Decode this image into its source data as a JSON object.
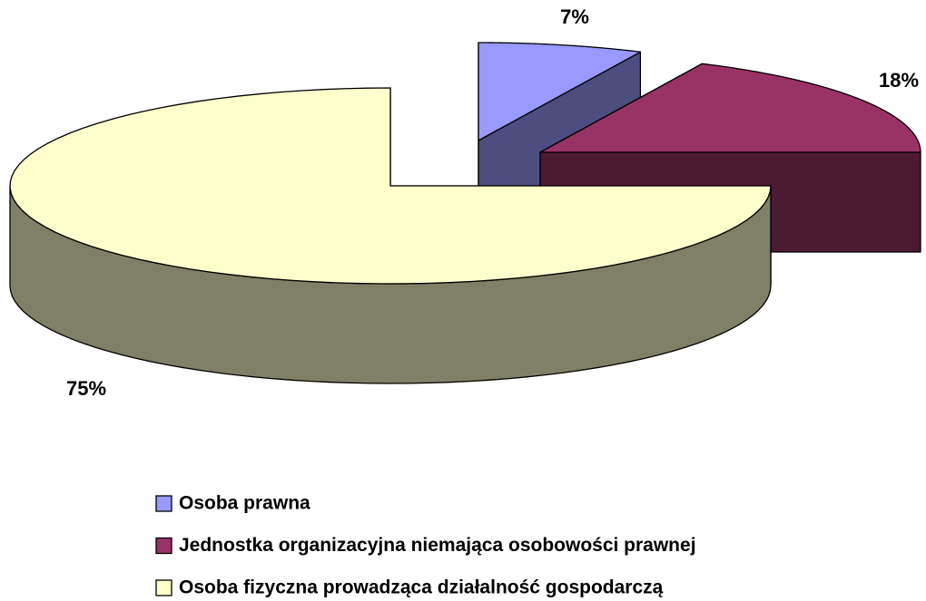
{
  "chart_data": {
    "type": "pie",
    "3d": true,
    "exploded": true,
    "categories": [
      "Osoba prawna",
      "Jednostka organizacyjna niemająca osobowości prawnej",
      "Osoba fizyczna prowadząca działalność gospodarczą"
    ],
    "values": [
      7,
      18,
      75
    ],
    "value_labels": [
      "7%",
      "18%",
      "75%"
    ],
    "colors": [
      "#9999ff",
      "#993366",
      "#ffffcc"
    ],
    "legend": "bottom"
  }
}
